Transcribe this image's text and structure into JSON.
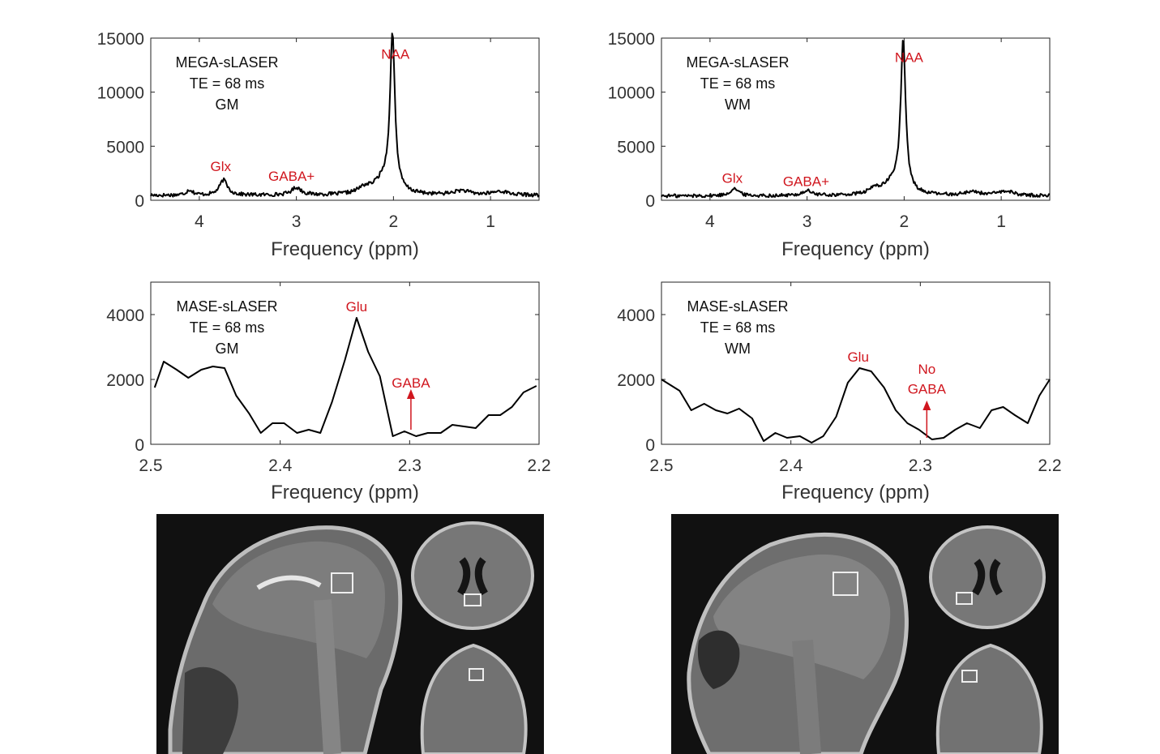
{
  "chart_data": [
    {
      "id": "mega-gm",
      "type": "line",
      "xlabel": "Frequency (ppm)",
      "xlim": [
        4.5,
        0.5
      ],
      "ylim": [
        0,
        15000
      ],
      "x_ticks": [
        4,
        3,
        2,
        1
      ],
      "y_ticks": [
        0,
        5000,
        10000,
        15000
      ],
      "info_lines": [
        "MEGA-sLASER",
        "TE = 68 ms",
        "GM"
      ],
      "baseline": 450,
      "noise": 170,
      "peaks": [
        {
          "x": 2.01,
          "height": 14300,
          "width": 0.03
        },
        {
          "x": 2.1,
          "height": 1300,
          "width": 0.12
        },
        {
          "x": 2.3,
          "height": 500,
          "width": 0.08
        },
        {
          "x": 3.75,
          "height": 1400,
          "width": 0.05
        },
        {
          "x": 3.0,
          "height": 700,
          "width": 0.06
        },
        {
          "x": 4.1,
          "height": 500,
          "width": 0.04
        },
        {
          "x": 1.3,
          "height": 400,
          "width": 0.1
        },
        {
          "x": 0.9,
          "height": 350,
          "width": 0.1
        }
      ],
      "annotations": [
        {
          "label": "NAA",
          "x": 1.98,
          "y": 13100
        },
        {
          "label": "Glx",
          "x": 3.78,
          "y": 2700
        },
        {
          "label": "GABA+",
          "x": 3.05,
          "y": 1800
        }
      ]
    },
    {
      "id": "mega-wm",
      "type": "line",
      "xlabel": "Frequency (ppm)",
      "xlim": [
        4.5,
        0.5
      ],
      "ylim": [
        0,
        15000
      ],
      "x_ticks": [
        4,
        3,
        2,
        1
      ],
      "y_ticks": [
        0,
        5000,
        10000,
        15000
      ],
      "info_lines": [
        "MEGA-sLASER",
        "TE = 68 ms",
        "WM"
      ],
      "baseline": 400,
      "noise": 160,
      "peaks": [
        {
          "x": 2.01,
          "height": 13800,
          "width": 0.03
        },
        {
          "x": 2.1,
          "height": 1200,
          "width": 0.12
        },
        {
          "x": 2.3,
          "height": 500,
          "width": 0.07
        },
        {
          "x": 3.75,
          "height": 700,
          "width": 0.05
        },
        {
          "x": 3.0,
          "height": 450,
          "width": 0.06
        },
        {
          "x": 1.3,
          "height": 350,
          "width": 0.1
        },
        {
          "x": 0.95,
          "height": 400,
          "width": 0.1
        }
      ],
      "annotations": [
        {
          "label": "NAA",
          "x": 1.95,
          "y": 12800
        },
        {
          "label": "Glx",
          "x": 3.77,
          "y": 1600
        },
        {
          "label": "GABA+",
          "x": 3.01,
          "y": 1300
        }
      ]
    },
    {
      "id": "mase-gm",
      "type": "line",
      "xlabel": "Frequency (ppm)",
      "xlim": [
        2.5,
        2.2
      ],
      "ylim": [
        0,
        5000
      ],
      "x_ticks": [
        2.5,
        2.4,
        2.3,
        2.2
      ],
      "y_ticks": [
        0,
        2000,
        4000
      ],
      "info_lines": [
        "MASE-sLASER",
        "TE = 68 ms",
        "GM"
      ],
      "x": [
        2.497,
        2.49,
        2.48,
        2.471,
        2.461,
        2.452,
        2.443,
        2.434,
        2.424,
        2.415,
        2.406,
        2.397,
        2.387,
        2.378,
        2.369,
        2.36,
        2.35,
        2.341,
        2.332,
        2.323,
        2.313,
        2.304,
        2.295,
        2.286,
        2.276,
        2.267,
        2.258,
        2.249,
        2.239,
        2.23,
        2.221,
        2.212,
        2.202
      ],
      "y": [
        1750,
        2550,
        2300,
        2050,
        2300,
        2400,
        2350,
        1500,
        950,
        350,
        650,
        650,
        350,
        450,
        350,
        1300,
        2600,
        3900,
        2850,
        2100,
        250,
        400,
        250,
        350,
        350,
        600,
        550,
        500,
        900,
        900,
        1150,
        1600,
        1800
      ],
      "annotations": [
        {
          "label": "Glu",
          "x": 2.341,
          "y": 4100
        },
        {
          "label": "GABA",
          "x": 2.299,
          "y": 1750
        }
      ],
      "arrow": {
        "x": 2.299,
        "from_y": 450,
        "to_y": 1650
      }
    },
    {
      "id": "mase-wm",
      "type": "line",
      "xlabel": "Frequency (ppm)",
      "xlim": [
        2.5,
        2.2
      ],
      "ylim": [
        0,
        5000
      ],
      "x_ticks": [
        2.5,
        2.4,
        2.3,
        2.2
      ],
      "y_ticks": [
        0,
        2000,
        4000
      ],
      "info_lines": [
        "MASE-sLASER",
        "TE = 68 ms",
        "WM"
      ],
      "x": [
        2.5,
        2.486,
        2.477,
        2.467,
        2.458,
        2.449,
        2.44,
        2.43,
        2.421,
        2.412,
        2.403,
        2.393,
        2.384,
        2.375,
        2.365,
        2.356,
        2.347,
        2.338,
        2.328,
        2.319,
        2.31,
        2.301,
        2.291,
        2.282,
        2.273,
        2.264,
        2.254,
        2.245,
        2.236,
        2.227,
        2.217,
        2.208,
        2.2
      ],
      "y": [
        2000,
        1650,
        1050,
        1250,
        1050,
        950,
        1100,
        800,
        100,
        350,
        200,
        250,
        50,
        250,
        850,
        1900,
        2350,
        2250,
        1750,
        1050,
        650,
        450,
        150,
        200,
        450,
        650,
        500,
        1050,
        1150,
        900,
        650,
        1500,
        2000
      ],
      "annotations": [
        {
          "label": "Glu",
          "x": 2.348,
          "y": 2550
        },
        {
          "label": "No",
          "x": 2.295,
          "y": 2180
        },
        {
          "label": "GABA",
          "x": 2.295,
          "y": 1560
        }
      ],
      "arrow": {
        "x": 2.295,
        "from_y": 200,
        "to_y": 1300
      }
    }
  ]
}
